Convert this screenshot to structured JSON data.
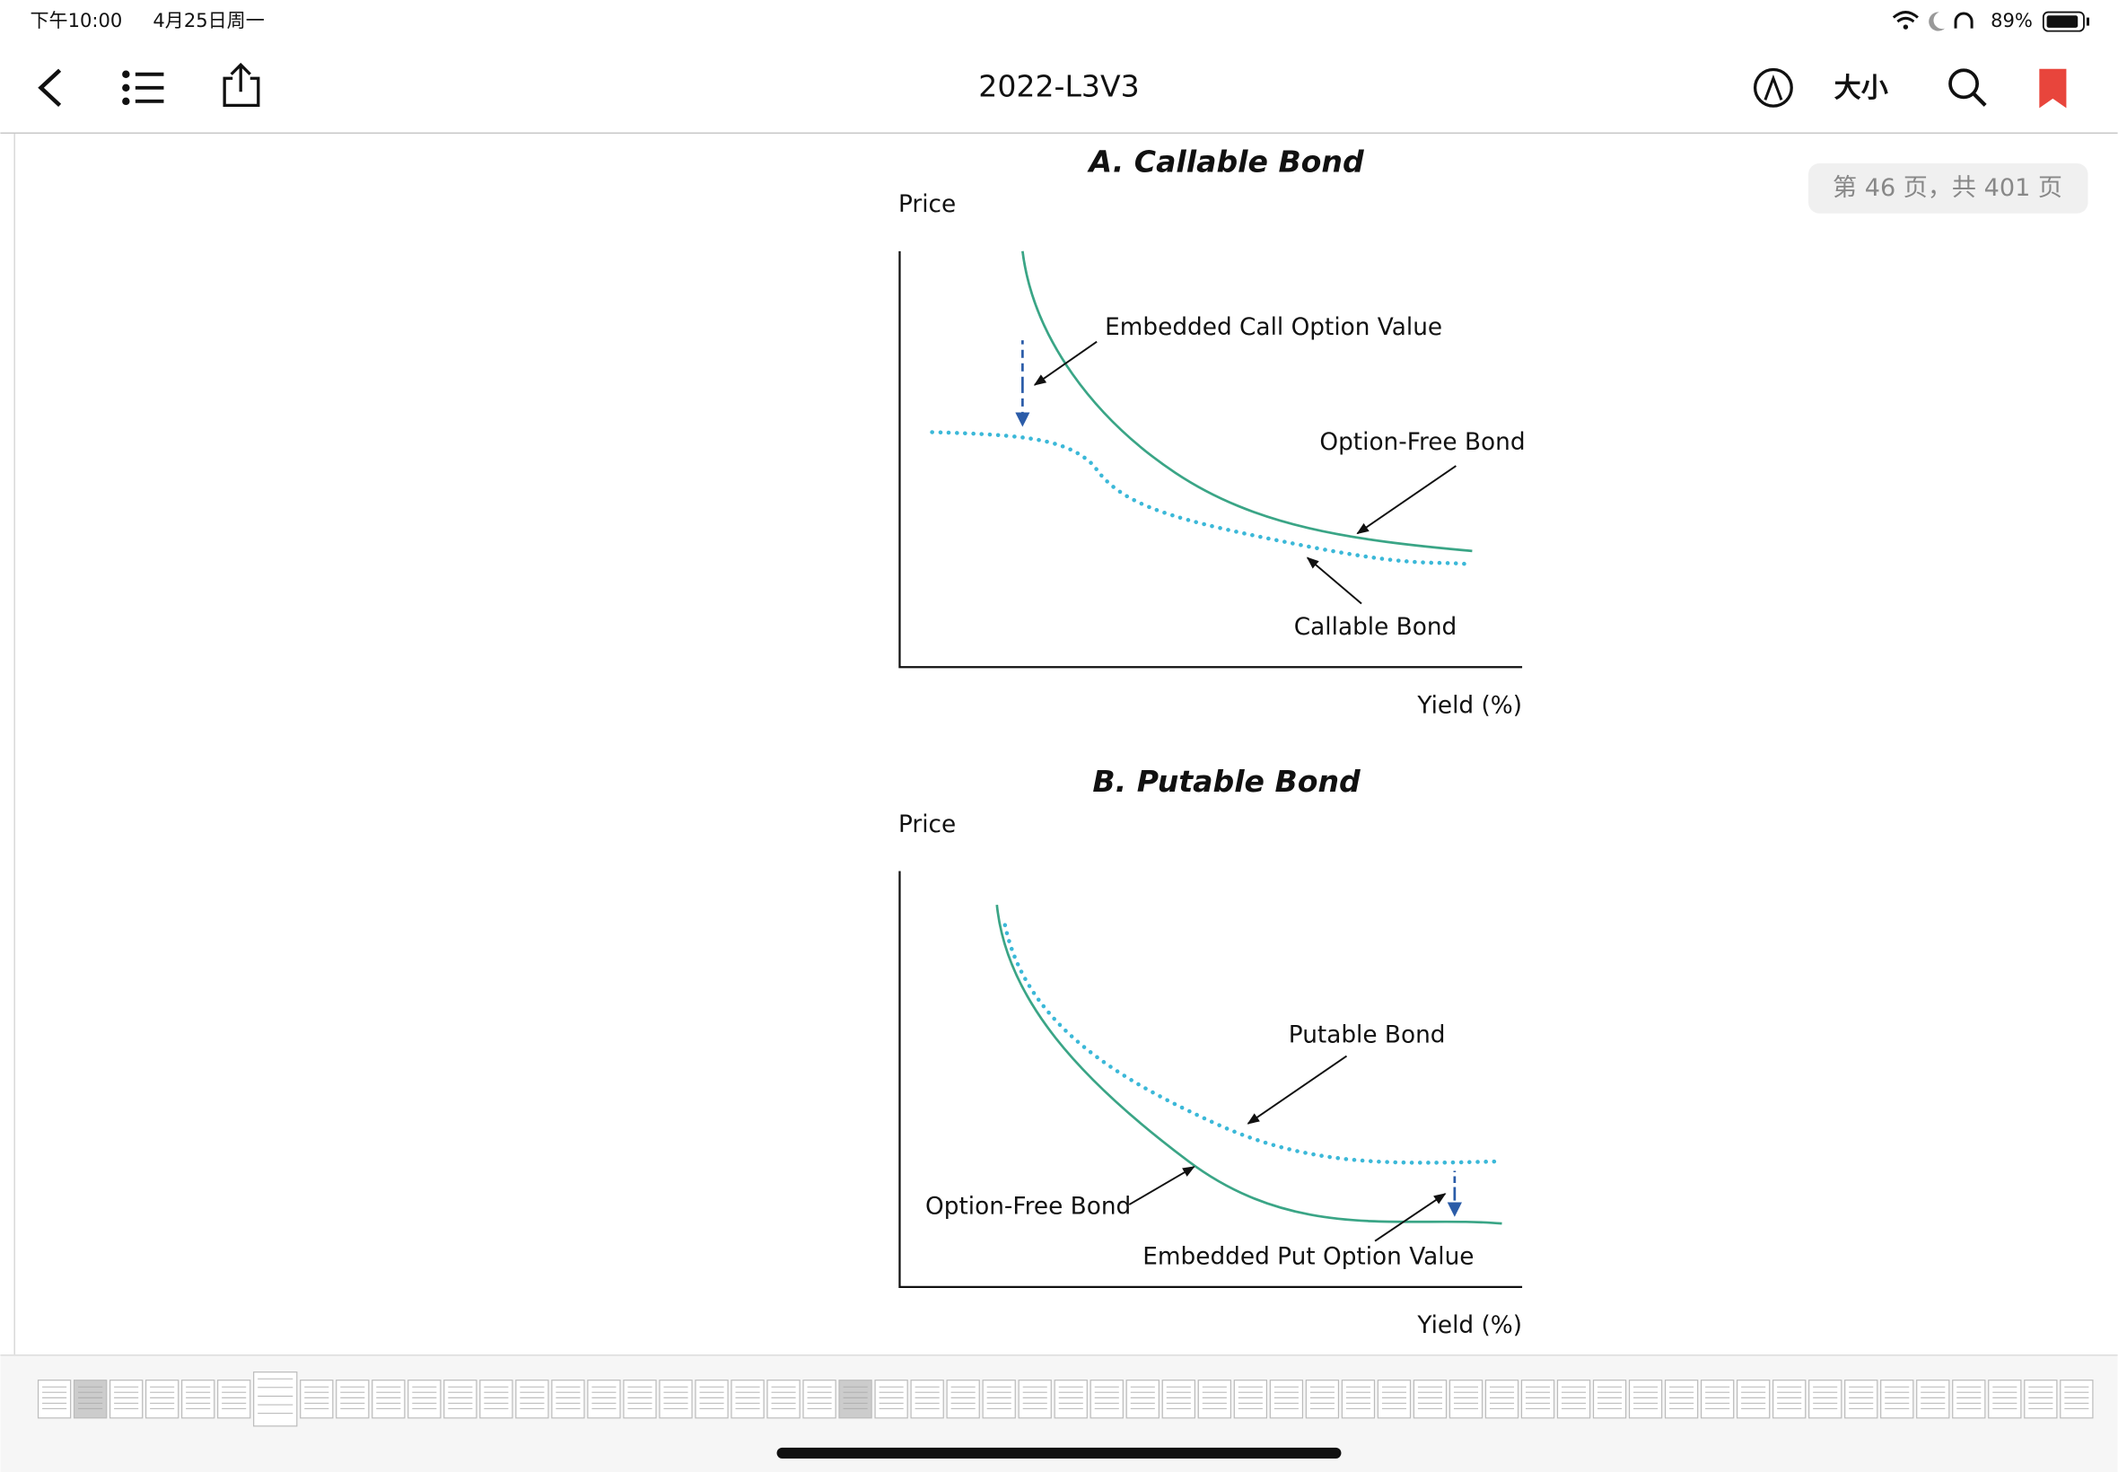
{
  "status_bar": {
    "time": "下午10:00",
    "date": "4月25日周一",
    "battery": "89%"
  },
  "nav": {
    "title": "2022-L3V3",
    "font_size_button": "大小"
  },
  "page_indicator": "第 46 页，共 401 页",
  "figures": [
    {
      "title": "A. Callable Bond",
      "y_label": "Price",
      "x_label": "Yield (%)",
      "labels": [
        "Embedded Call Option Value",
        "Option-Free Bond",
        "Callable Bond"
      ]
    },
    {
      "title": "B. Putable Bond",
      "y_label": "Price",
      "x_label": "Yield (%)",
      "labels": [
        "Putable Bond",
        "Option-Free Bond",
        "Embedded Put Option Value"
      ]
    }
  ]
}
